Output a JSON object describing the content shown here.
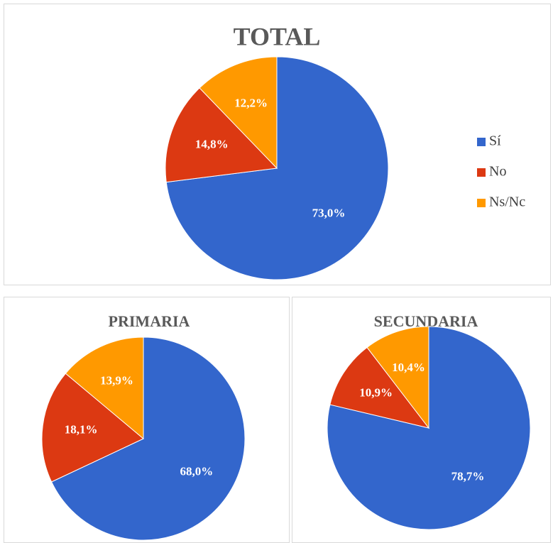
{
  "chart_data": [
    {
      "type": "pie",
      "title": "TOTAL",
      "categories": [
        "Sí",
        "No",
        "Ns/Nc"
      ],
      "values": [
        73.0,
        14.8,
        12.2
      ],
      "value_labels": [
        "73,0%",
        "14,8%",
        "12,2%"
      ],
      "colors": [
        "#3366cc",
        "#dc3912",
        "#ff9900"
      ],
      "legend": "right"
    },
    {
      "type": "pie",
      "title": "PRIMARIA",
      "values": [
        68.0,
        18.1,
        13.9
      ],
      "value_labels": [
        "68,0%",
        "18,1%",
        "13,9%"
      ],
      "colors": [
        "#3366cc",
        "#dc3912",
        "#ff9900"
      ]
    },
    {
      "type": "pie",
      "title": "SECUNDARIA",
      "values": [
        78.7,
        10.9,
        10.4
      ],
      "value_labels": [
        "78,7%",
        "10,9%",
        "10,4%"
      ],
      "colors": [
        "#3366cc",
        "#dc3912",
        "#ff9900"
      ]
    }
  ]
}
